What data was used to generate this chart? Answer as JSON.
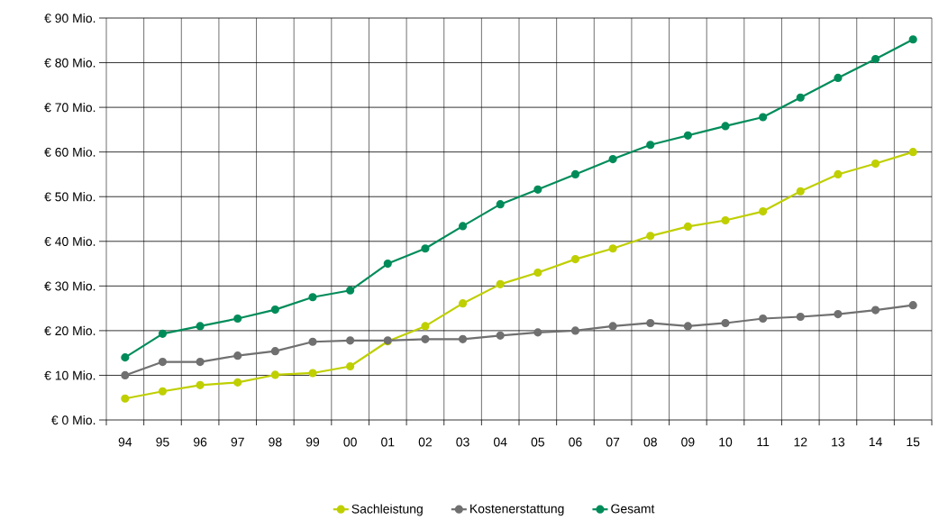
{
  "chart_data": {
    "type": "line",
    "categories": [
      "94",
      "95",
      "96",
      "97",
      "98",
      "99",
      "00",
      "01",
      "02",
      "03",
      "04",
      "05",
      "06",
      "07",
      "08",
      "09",
      "10",
      "11",
      "12",
      "13",
      "14",
      "15"
    ],
    "series": [
      {
        "name": "Sachleistung",
        "color": "#bfcf00",
        "values": [
          4.8,
          6.4,
          7.8,
          8.4,
          10.1,
          10.5,
          12,
          17.6,
          21,
          26.1,
          30.4,
          33,
          36,
          38.4,
          41.2,
          43.3,
          44.7,
          46.7,
          51.2,
          55,
          57.4,
          60
        ]
      },
      {
        "name": "Kostenerstattung",
        "color": "#707070",
        "values": [
          10,
          13,
          13,
          14.4,
          15.4,
          17.5,
          17.8,
          17.8,
          18.1,
          18.1,
          18.9,
          19.6,
          20,
          21,
          21.7,
          21,
          21.7,
          22.7,
          23.1,
          23.7,
          24.6,
          25.7
        ]
      },
      {
        "name": "Gesamt",
        "color": "#008c5a",
        "values": [
          14,
          19.3,
          21,
          22.7,
          24.7,
          27.5,
          29,
          35,
          38.4,
          43.4,
          48.3,
          51.6,
          55,
          58.4,
          61.6,
          63.7,
          65.8,
          67.8,
          72.2,
          76.6,
          80.8,
          85.2
        ]
      }
    ],
    "ylim": [
      0,
      90
    ],
    "yticks": [
      {
        "value": 0,
        "label": "€ 0 Mio."
      },
      {
        "value": 10,
        "label": "€ 10 Mio."
      },
      {
        "value": 20,
        "label": "€ 20 Mio."
      },
      {
        "value": 30,
        "label": "€ 30 Mio."
      },
      {
        "value": 40,
        "label": "€ 40 Mio."
      },
      {
        "value": 50,
        "label": "€ 50 Mio."
      },
      {
        "value": 60,
        "label": "€ 60 Mio."
      },
      {
        "value": 70,
        "label": "€ 70 Mio."
      },
      {
        "value": 80,
        "label": "€ 80 Mio."
      },
      {
        "value": 90,
        "label": "€ 90 Mio."
      }
    ],
    "grid": true,
    "legend": "bottom",
    "marker": "circle",
    "line_style": "solid"
  }
}
